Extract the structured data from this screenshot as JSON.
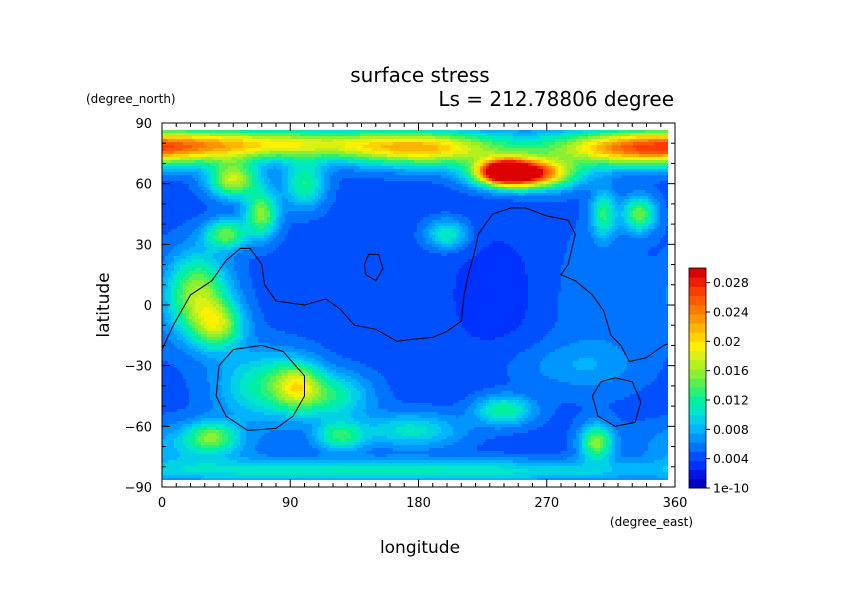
{
  "chart_data": {
    "type": "heatmap",
    "title": "surface stress",
    "subtitle": "Ls = 212.78806 degree",
    "xlabel": "longitude",
    "ylabel": "latitude",
    "xunits": "(degree_east)",
    "yunits": "(degree_north)",
    "xlim": [
      0,
      360
    ],
    "ylim": [
      -90,
      90
    ],
    "xticks": [
      "0",
      "90",
      "180",
      "270",
      "360"
    ],
    "yticks": [
      "90",
      "60",
      "30",
      "0",
      "−30",
      "−60",
      "−90"
    ],
    "colorbar": {
      "min": 1e-10,
      "max": 0.03,
      "ticks": [
        {
          "value": 1e-10,
          "label": "1e-10"
        },
        {
          "value": 0.004,
          "label": "0.004"
        },
        {
          "value": 0.008,
          "label": "0.008"
        },
        {
          "value": 0.012,
          "label": "0.012"
        },
        {
          "value": 0.016,
          "label": "0.016"
        },
        {
          "value": 0.02,
          "label": "0.02"
        },
        {
          "value": 0.024,
          "label": "0.024"
        },
        {
          "value": 0.028,
          "label": "0.028"
        }
      ],
      "colors": [
        "#0000c8",
        "#0014e6",
        "#0032ff",
        "#0050ff",
        "#0073ff",
        "#0096ff",
        "#00b4ff",
        "#00d2e6",
        "#00e6c8",
        "#00f0a0",
        "#28f078",
        "#5af050",
        "#8cf032",
        "#b4f01e",
        "#dcf014",
        "#fff000",
        "#ffd200",
        "#ffb400",
        "#ff9600",
        "#ff7800",
        "#ff5a00",
        "#ff3c00",
        "#f01e00",
        "#dc0000"
      ]
    },
    "background_value": 0.0045,
    "blobs": [
      {
        "lon": 0,
        "lat": 78,
        "dlon": 60,
        "dlat": 6,
        "value": 0.011
      },
      {
        "lon": 90,
        "lat": 80,
        "dlon": 70,
        "dlat": 5,
        "value": 0.01
      },
      {
        "lon": 185,
        "lat": 77,
        "dlon": 40,
        "dlat": 6,
        "value": 0.014
      },
      {
        "lon": 255,
        "lat": 65,
        "dlon": 22,
        "dlat": 5,
        "value": 0.025
      },
      {
        "lon": 240,
        "lat": 66,
        "dlon": 12,
        "dlat": 4,
        "value": 0.02
      },
      {
        "lon": 330,
        "lat": 77,
        "dlon": 40,
        "dlat": 6,
        "value": 0.01
      },
      {
        "lon": 50,
        "lat": 62,
        "dlon": 12,
        "dlat": 6,
        "value": 0.013
      },
      {
        "lon": 70,
        "lat": 45,
        "dlon": 8,
        "dlat": 8,
        "value": 0.011
      },
      {
        "lon": 45,
        "lat": 35,
        "dlon": 10,
        "dlat": 5,
        "value": 0.01
      },
      {
        "lon": 25,
        "lat": 5,
        "dlon": 15,
        "dlat": 14,
        "value": 0.012
      },
      {
        "lon": 40,
        "lat": -10,
        "dlon": 12,
        "dlat": 8,
        "value": 0.01
      },
      {
        "lon": 95,
        "lat": -40,
        "dlon": 12,
        "dlat": 8,
        "value": 0.01
      },
      {
        "lon": 70,
        "lat": -40,
        "dlon": 22,
        "dlat": 12,
        "value": 0.007
      },
      {
        "lon": 120,
        "lat": -45,
        "dlon": 18,
        "dlat": 8,
        "value": 0.007
      },
      {
        "lon": 125,
        "lat": -65,
        "dlon": 12,
        "dlat": 5,
        "value": 0.008
      },
      {
        "lon": 35,
        "lat": -65,
        "dlon": 12,
        "dlat": 5,
        "value": 0.008
      },
      {
        "lon": 175,
        "lat": -62,
        "dlon": 25,
        "dlat": 6,
        "value": 0.006
      },
      {
        "lon": 240,
        "lat": -52,
        "dlon": 14,
        "dlat": 5,
        "value": 0.008
      },
      {
        "lon": 305,
        "lat": -68,
        "dlon": 8,
        "dlat": 6,
        "value": 0.011
      },
      {
        "lon": 335,
        "lat": 45,
        "dlon": 8,
        "dlat": 6,
        "value": 0.01
      },
      {
        "lon": 310,
        "lat": 45,
        "dlon": 6,
        "dlat": 8,
        "value": 0.008
      },
      {
        "lon": 100,
        "lat": 60,
        "dlon": 10,
        "dlat": 8,
        "value": 0.008
      },
      {
        "lon": 200,
        "lat": 35,
        "dlon": 10,
        "dlat": 5,
        "value": 0.007
      },
      {
        "lon": 160,
        "lat": -82,
        "dlon": 140,
        "dlat": 4,
        "value": 0.007
      },
      {
        "lon": 240,
        "lat": 5,
        "dlon": 30,
        "dlat": 25,
        "value": -0.0015
      },
      {
        "lon": 300,
        "lat": 0,
        "dlon": 30,
        "dlat": 30,
        "value": 0.0015
      },
      {
        "lon": 20,
        "lat": -70,
        "dlon": 30,
        "dlat": 8,
        "value": 0.004
      },
      {
        "lon": 300,
        "lat": -30,
        "dlon": 25,
        "dlat": 8,
        "value": 0.002
      },
      {
        "lon": 260,
        "lat": -30,
        "dlon": 25,
        "dlat": 8,
        "value": 0.001
      }
    ],
    "contours": [
      {
        "name": "coastline",
        "closed": false,
        "points": [
          [
            0,
            -22
          ],
          [
            8,
            -10
          ],
          [
            20,
            5
          ],
          [
            35,
            12
          ],
          [
            45,
            22
          ],
          [
            55,
            28
          ],
          [
            62,
            28
          ],
          [
            70,
            20
          ],
          [
            72,
            10
          ],
          [
            80,
            2
          ],
          [
            100,
            0
          ],
          [
            115,
            3
          ],
          [
            125,
            -2
          ],
          [
            135,
            -10
          ],
          [
            150,
            -12
          ],
          [
            165,
            -18
          ],
          [
            175,
            -17
          ],
          [
            190,
            -16
          ],
          [
            200,
            -13
          ],
          [
            210,
            -8
          ],
          [
            212,
            5
          ],
          [
            215,
            15
          ],
          [
            220,
            28
          ],
          [
            222,
            35
          ],
          [
            232,
            45
          ],
          [
            245,
            48
          ],
          [
            255,
            48
          ],
          [
            270,
            44
          ],
          [
            285,
            42
          ],
          [
            290,
            35
          ],
          [
            285,
            20
          ],
          [
            280,
            15
          ],
          [
            290,
            12
          ],
          [
            302,
            5
          ],
          [
            310,
            -3
          ],
          [
            315,
            -15
          ],
          [
            322,
            -20
          ],
          [
            328,
            -28
          ],
          [
            340,
            -26
          ],
          [
            352,
            -20
          ],
          [
            360,
            -18
          ]
        ]
      },
      {
        "name": "hellas",
        "closed": true,
        "points": [
          [
            70,
            -20
          ],
          [
            85,
            -23
          ],
          [
            100,
            -35
          ],
          [
            100,
            -45
          ],
          [
            92,
            -55
          ],
          [
            80,
            -61
          ],
          [
            60,
            -62
          ],
          [
            45,
            -55
          ],
          [
            38,
            -45
          ],
          [
            40,
            -30
          ],
          [
            50,
            -22
          ]
        ]
      },
      {
        "name": "argyre",
        "closed": true,
        "points": [
          [
            318,
            -36
          ],
          [
            330,
            -38
          ],
          [
            336,
            -48
          ],
          [
            332,
            -58
          ],
          [
            318,
            -60
          ],
          [
            306,
            -55
          ],
          [
            302,
            -45
          ],
          [
            308,
            -38
          ]
        ]
      },
      {
        "name": "elysium",
        "closed": true,
        "points": [
          [
            145,
            25
          ],
          [
            152,
            25
          ],
          [
            155,
            18
          ],
          [
            150,
            12
          ],
          [
            143,
            15
          ],
          [
            142,
            20
          ]
        ]
      }
    ]
  }
}
